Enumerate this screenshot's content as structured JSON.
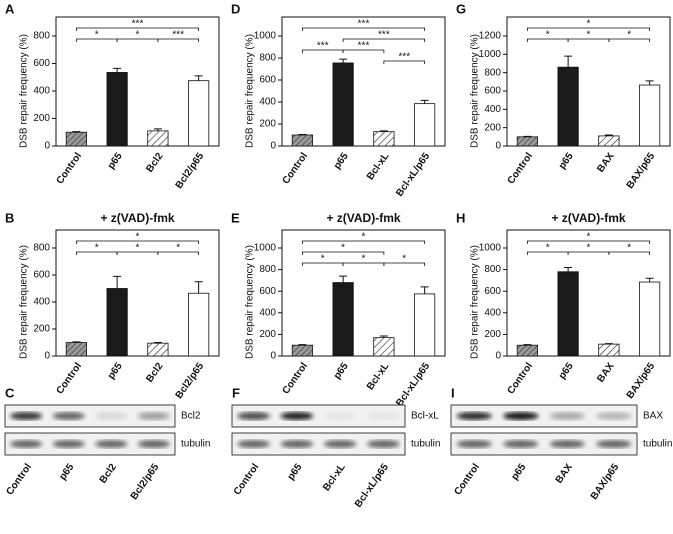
{
  "chart_data": [
    {
      "type": "bar",
      "panel": "A",
      "y_label": "DSB repair frequency (%)",
      "categories": [
        "Control",
        "p65",
        "Bcl2",
        "Bcl2/p65"
      ],
      "values": [
        100,
        535,
        110,
        475
      ],
      "errors": [
        5,
        30,
        15,
        35
      ],
      "colors": [
        "url(#p-cross)",
        "#1a1a1a",
        "url(#p-hatch)",
        "#ffffff"
      ],
      "ylim": [
        0,
        800
      ],
      "yticks": [
        0,
        200,
        400,
        600,
        800
      ],
      "bracket_rows": [
        [
          {
            "from": 0,
            "to": 3,
            "label": "***"
          }
        ],
        [
          {
            "from": 0,
            "to": 1,
            "label": "*"
          },
          {
            "from": 1,
            "to": 2,
            "label": "*"
          },
          {
            "from": 2,
            "to": 3,
            "label": "***"
          }
        ]
      ]
    },
    {
      "type": "bar",
      "panel": "B",
      "title": "+ z(VAD)-fmk",
      "y_label": "DSB repair frequency (%)",
      "categories": [
        "Control",
        "p65",
        "Bcl2",
        "Bcl2/p65"
      ],
      "values": [
        100,
        500,
        95,
        465
      ],
      "errors": [
        5,
        90,
        5,
        85
      ],
      "colors": [
        "url(#p-cross)",
        "#1a1a1a",
        "url(#p-hatch)",
        "#ffffff"
      ],
      "ylim": [
        0,
        800
      ],
      "yticks": [
        0,
        200,
        400,
        600,
        800
      ],
      "bracket_rows": [
        [
          {
            "from": 0,
            "to": 3,
            "label": "*"
          }
        ],
        [
          {
            "from": 0,
            "to": 1,
            "label": "*"
          },
          {
            "from": 1,
            "to": 2,
            "label": "*"
          },
          {
            "from": 2,
            "to": 3,
            "label": "*"
          }
        ]
      ]
    },
    {
      "type": "bar",
      "panel": "D",
      "y_label": "DSB repair frequency (%)",
      "categories": [
        "Control",
        "p65",
        "Bcl-xL",
        "Bcl-xL/p65"
      ],
      "values": [
        100,
        755,
        130,
        385
      ],
      "errors": [
        5,
        35,
        8,
        30
      ],
      "colors": [
        "url(#p-cross)",
        "#1a1a1a",
        "url(#p-hatch)",
        "#ffffff"
      ],
      "ylim": [
        0,
        1000
      ],
      "yticks": [
        0,
        200,
        400,
        600,
        800,
        1000
      ],
      "bracket_rows": [
        [
          {
            "from": 0,
            "to": 3,
            "label": "***"
          }
        ],
        [
          {
            "from": 1,
            "to": 3,
            "label": "***"
          }
        ],
        [
          {
            "from": 0,
            "to": 1,
            "label": "***"
          },
          {
            "from": 1,
            "to": 2,
            "label": "***"
          }
        ],
        [
          {
            "from": 2,
            "to": 3,
            "label": "***"
          }
        ]
      ]
    },
    {
      "type": "bar",
      "panel": "E",
      "title": "+ z(VAD)-fmk",
      "y_label": "DSB repair frequency (%)",
      "categories": [
        "Control",
        "p65",
        "Bcl-xL",
        "Bcl-xL/p65"
      ],
      "values": [
        100,
        680,
        170,
        575
      ],
      "errors": [
        5,
        60,
        15,
        65
      ],
      "colors": [
        "url(#p-cross)",
        "#1a1a1a",
        "url(#p-hatch)",
        "#ffffff"
      ],
      "ylim": [
        0,
        1000
      ],
      "yticks": [
        0,
        200,
        400,
        600,
        800,
        1000
      ],
      "bracket_rows": [
        [
          {
            "from": 0,
            "to": 3,
            "label": "*"
          }
        ],
        [
          {
            "from": 0,
            "to": 2,
            "label": "*"
          }
        ],
        [
          {
            "from": 0,
            "to": 1,
            "label": "*"
          },
          {
            "from": 1,
            "to": 2,
            "label": "*"
          },
          {
            "from": 2,
            "to": 3,
            "label": "*"
          }
        ]
      ]
    },
    {
      "type": "bar",
      "panel": "G",
      "y_label": "DSB repair frequency (%)",
      "categories": [
        "Control",
        "p65",
        "BAX",
        "BAX/p65"
      ],
      "values": [
        100,
        860,
        110,
        665
      ],
      "errors": [
        5,
        120,
        10,
        45
      ],
      "colors": [
        "url(#p-cross)",
        "#1a1a1a",
        "url(#p-hatch)",
        "#ffffff"
      ],
      "ylim": [
        0,
        1200
      ],
      "yticks": [
        0,
        200,
        400,
        600,
        800,
        1000,
        1200
      ],
      "bracket_rows": [
        [
          {
            "from": 0,
            "to": 3,
            "label": "*"
          }
        ],
        [
          {
            "from": 0,
            "to": 1,
            "label": "*"
          },
          {
            "from": 1,
            "to": 2,
            "label": "*"
          },
          {
            "from": 2,
            "to": 3,
            "label": "*"
          }
        ]
      ]
    },
    {
      "type": "bar",
      "panel": "H",
      "title": "+ z(VAD)-fmk",
      "y_label": "DSB repair frequency (%)",
      "categories": [
        "Control",
        "p65",
        "BAX",
        "BAX/p65"
      ],
      "values": [
        100,
        780,
        110,
        685
      ],
      "errors": [
        5,
        40,
        5,
        35
      ],
      "colors": [
        "url(#p-cross)",
        "#1a1a1a",
        "url(#p-hatch)",
        "#ffffff"
      ],
      "ylim": [
        0,
        1000
      ],
      "yticks": [
        0,
        200,
        400,
        600,
        800,
        1000
      ],
      "bracket_rows": [
        [
          {
            "from": 0,
            "to": 3,
            "label": "*"
          }
        ],
        [
          {
            "from": 0,
            "to": 1,
            "label": "*"
          },
          {
            "from": 1,
            "to": 2,
            "label": "*"
          },
          {
            "from": 2,
            "to": 3,
            "label": "*"
          }
        ]
      ]
    }
  ],
  "blots": [
    {
      "panel": "C",
      "rows": [
        "Bcl2",
        "tubulin"
      ],
      "lanes": [
        "Control",
        "p65",
        "Bcl2",
        "Bcl2/p65"
      ]
    },
    {
      "panel": "F",
      "rows": [
        "Bcl-xL",
        "tubulin"
      ],
      "lanes": [
        "Control",
        "p65",
        "Bcl-xL",
        "Bcl-xL/p65"
      ]
    },
    {
      "panel": "I",
      "rows": [
        "BAX",
        "tubulin"
      ],
      "lanes": [
        "Control",
        "p65",
        "BAX",
        "BAX/p65"
      ]
    }
  ]
}
